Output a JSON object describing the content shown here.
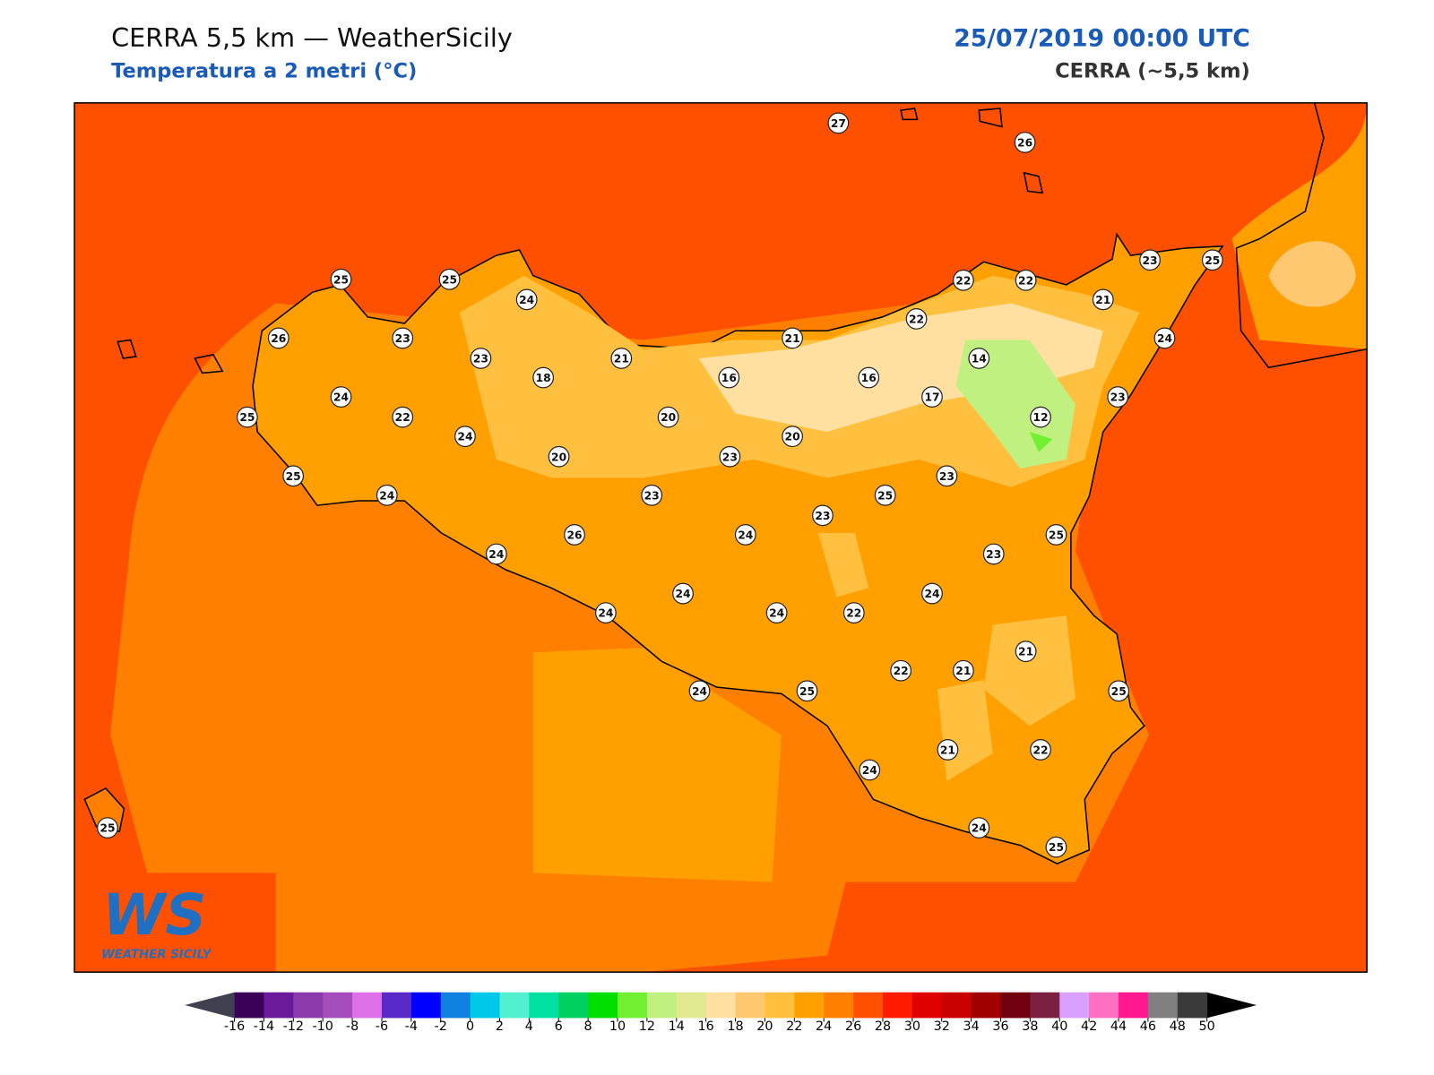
{
  "header": {
    "title": "CERRA 5,5 km — WeatherSicily",
    "subtitle": "Temperatura a 2 metri (°C)",
    "datetime": "25/07/2019 00:00 UTC",
    "model": "CERRA (~5,5 km)"
  },
  "station_values": [
    27,
    26,
    25,
    25,
    24,
    23,
    25,
    22,
    22,
    21,
    22,
    26,
    23,
    23,
    21,
    21,
    14,
    24,
    18,
    16,
    16,
    17,
    23,
    24,
    25,
    22,
    20,
    20,
    12,
    24,
    20,
    23,
    25,
    23,
    24,
    23,
    25,
    23,
    26,
    24,
    25,
    24,
    23,
    24,
    24,
    24,
    24,
    22,
    21,
    22,
    21,
    24,
    25,
    25,
    21,
    22,
    24,
    24,
    25,
    25
  ],
  "logo": {
    "mark": "WS",
    "text": "WEATHER SICILY"
  },
  "colorbar": {
    "ticks": [
      -16,
      -14,
      -12,
      -10,
      -8,
      -6,
      -4,
      -2,
      0,
      2,
      4,
      6,
      8,
      10,
      12,
      14,
      16,
      18,
      20,
      22,
      24,
      26,
      28,
      30,
      32,
      34,
      36,
      38,
      40,
      42,
      44,
      46,
      48,
      50
    ],
    "colors": [
      "#3b0057",
      "#6b1a9a",
      "#8a3aaa",
      "#a54dbd",
      "#e070e8",
      "#5a2ac8",
      "#0000ff",
      "#1080e0",
      "#00c8e8",
      "#50f0d0",
      "#00e0a0",
      "#00d060",
      "#00e000",
      "#70f030",
      "#c0f080",
      "#e0e890",
      "#ffe0a0",
      "#ffc870",
      "#ffc040",
      "#ffa000",
      "#ff8000",
      "#ff5000",
      "#ff1a00",
      "#e00000",
      "#c80000",
      "#a00000",
      "#700010",
      "#7a2040",
      "#d8a0ff",
      "#ff70c0",
      "#ff1890",
      "#808080",
      "#3a3a3a"
    ],
    "under_color": "#404050",
    "over_color": "#000000"
  }
}
